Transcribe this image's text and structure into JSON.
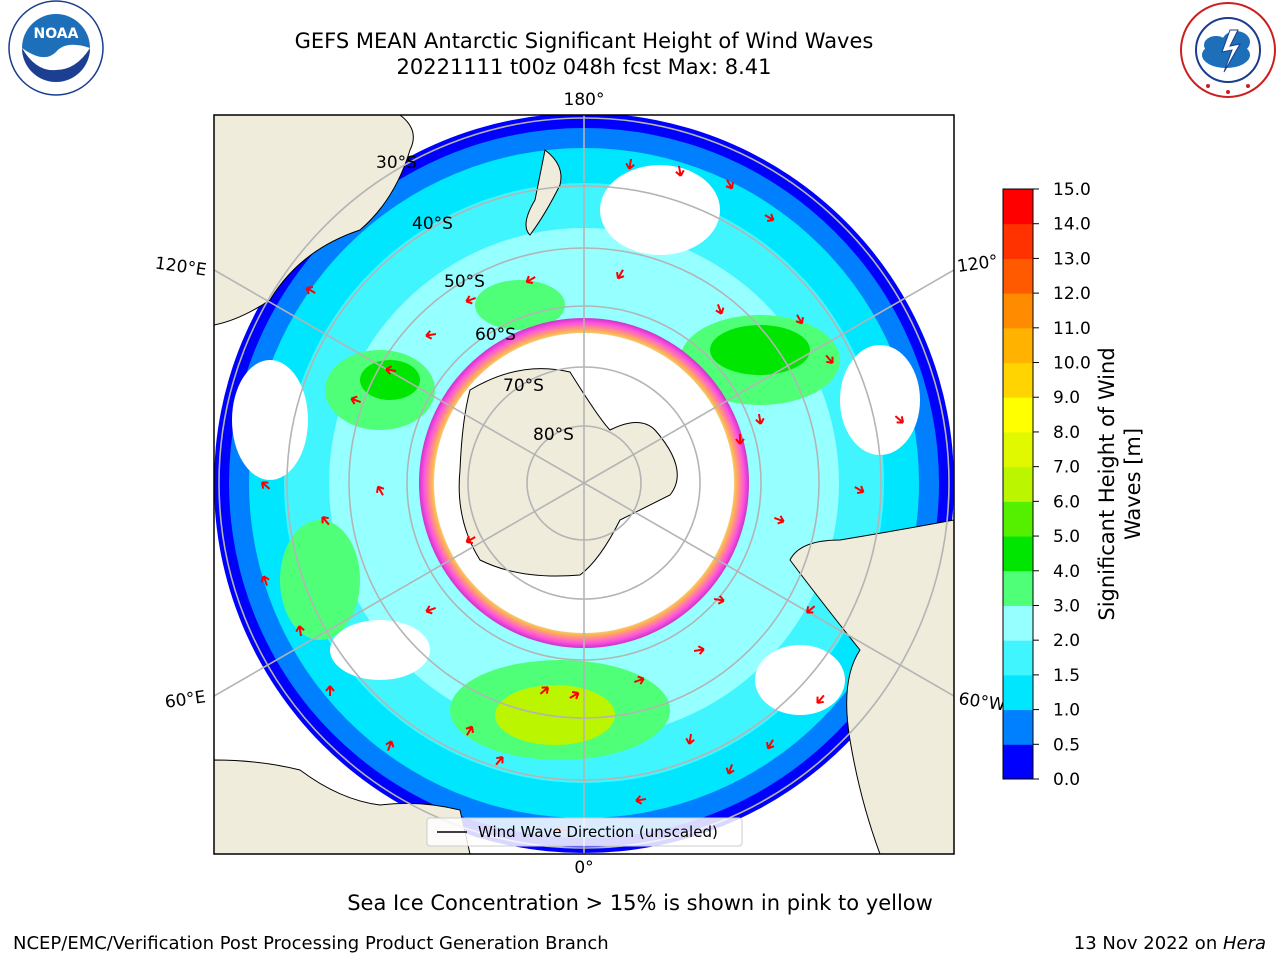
{
  "title_line1": "GEFS MEAN Antarctic Significant Height of Wind Waves",
  "title_line2": "20221111 t00z 048h fcst   Max: 8.41",
  "logos": {
    "left": {
      "name": "noaa-logo",
      "text": "NOAA",
      "ring_text": "NATIONAL OCEANIC AND ATMOSPHERIC ADMINISTRATION · U.S. DEPARTMENT OF COMMERCE"
    },
    "right": {
      "name": "nws-logo",
      "ring_text": "NATIONAL WEATHER SERVICE"
    }
  },
  "map": {
    "projection": "south polar stereographic",
    "longitude_labels": [
      "180°",
      "120°E",
      "120°",
      "60°E",
      "60°W",
      "0°"
    ],
    "latitude_labels": [
      "30°S",
      "40°S",
      "50°S",
      "60°S",
      "70°S",
      "80°S"
    ],
    "legend_label": "Wind Wave Direction (unscaled)",
    "colors": {
      "land": "#efecdc",
      "arrow": "#ff0000",
      "sea_ice": "#ff55dd",
      "grid": "#b4b4b4"
    }
  },
  "colorbar": {
    "label": "Significant Height of Wind Waves [m]",
    "label_line1": "Significant Height of Wind",
    "label_line2": "Waves [m]",
    "ticks": [
      "0.0",
      "0.5",
      "1.0",
      "1.5",
      "2.0",
      "3.0",
      "4.0",
      "5.0",
      "6.0",
      "7.0",
      "8.0",
      "9.0",
      "10.0",
      "11.0",
      "12.0",
      "13.0",
      "14.0",
      "15.0"
    ],
    "colors": [
      "#0000ff",
      "#0080ff",
      "#00e6ff",
      "#41f5ff",
      "#96ffff",
      "#50ff78",
      "#00e600",
      "#55f000",
      "#bbf500",
      "#e1f900",
      "#ffff00",
      "#ffd400",
      "#ffb300",
      "#ff8c00",
      "#ff5a00",
      "#ff3200",
      "#ff0000"
    ]
  },
  "footnote": "Sea Ice Concentration > 15% is shown in pink to yellow",
  "credit_left": "NCEP/EMC/Verification Post Processing Product Generation Branch",
  "credit_right_date": "13 Nov 2022 on ",
  "credit_right_host": "Hera"
}
